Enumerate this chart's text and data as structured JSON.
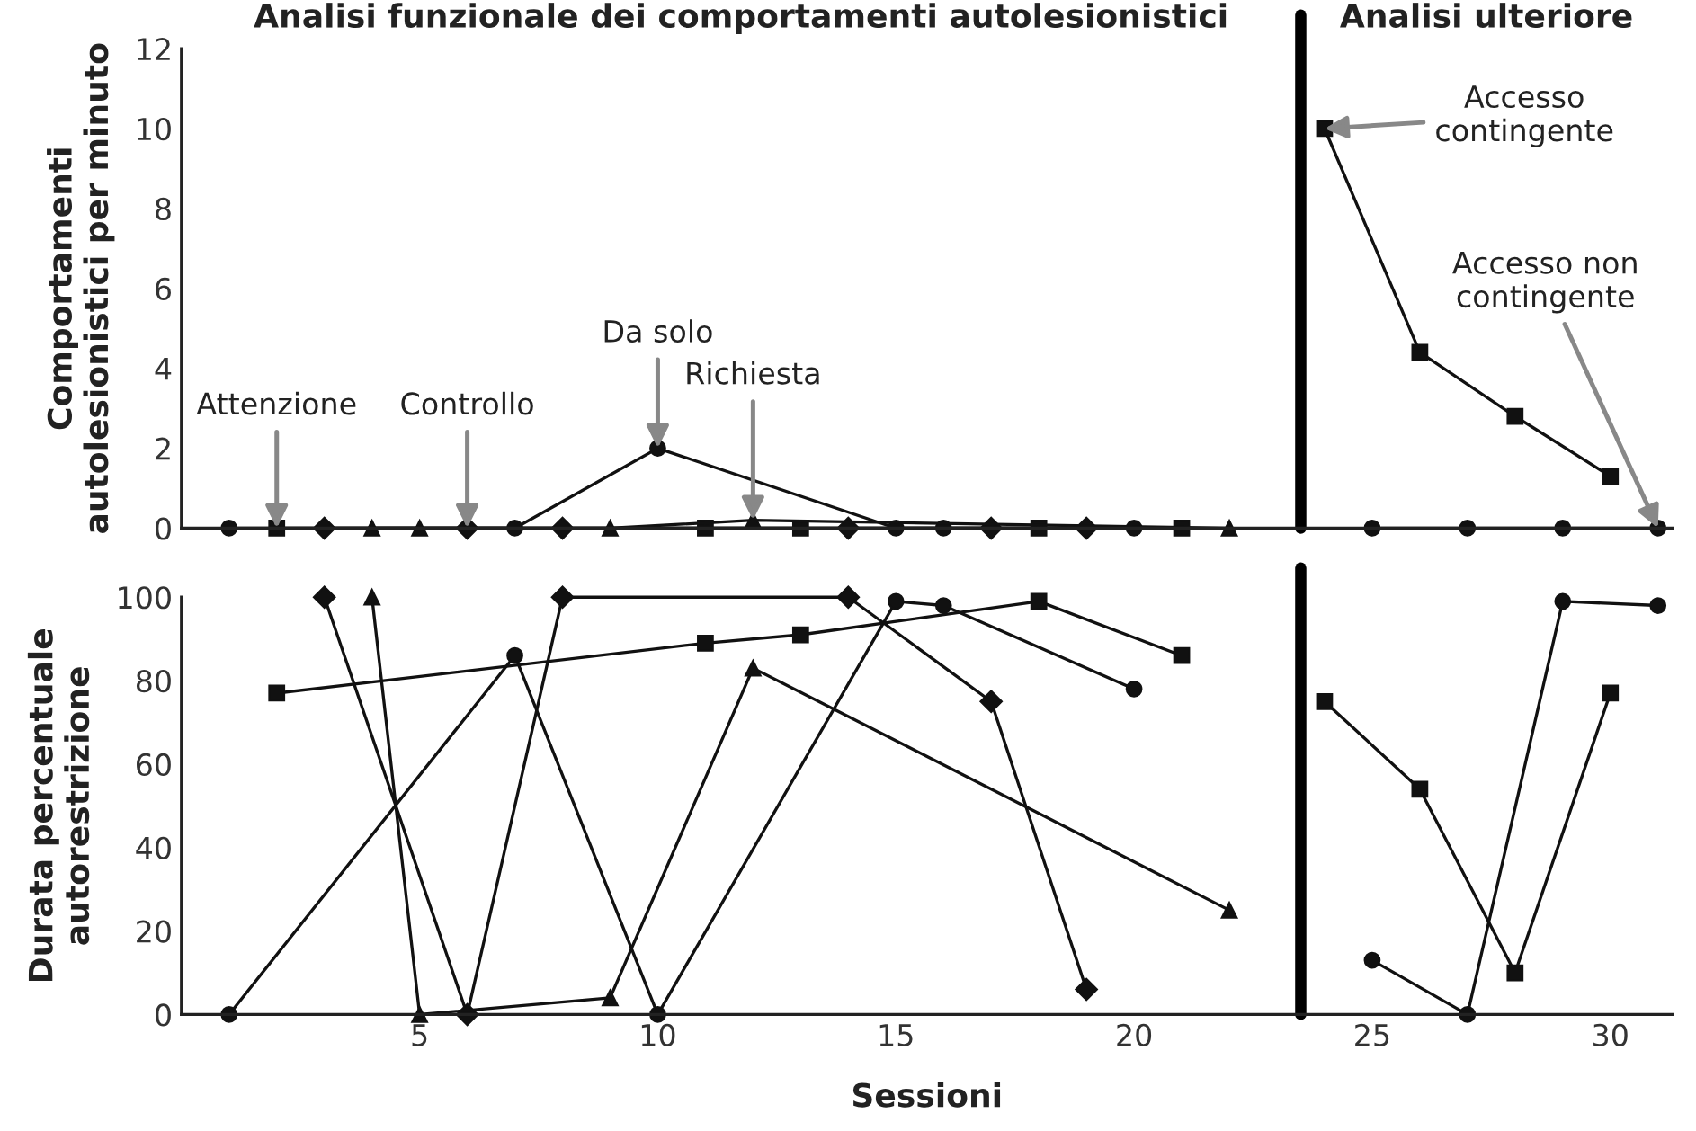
{
  "chart_data": [
    {
      "type": "line",
      "title": "Analisi funzionale dei comportamenti autolesionistici",
      "ylabel": "Comportamenti\nautolesionistici per minuto",
      "xlim": [
        0,
        31.3
      ],
      "ylim": [
        0,
        12
      ],
      "yticks": [
        0,
        2,
        4,
        6,
        8,
        10,
        12
      ],
      "tick_labels": "y",
      "grid": false,
      "legend": false,
      "line_style": "solid",
      "series": [
        {
          "color": "#111111",
          "marker": "circle",
          "x": [
            1,
            7,
            10,
            15,
            16,
            20
          ],
          "values": [
            0,
            0,
            2,
            0,
            0,
            0
          ]
        },
        {
          "color": "#111111",
          "marker": "square",
          "x": [
            2,
            11,
            13,
            18,
            21
          ],
          "values": [
            0,
            0,
            0,
            0,
            0
          ]
        },
        {
          "color": "#111111",
          "marker": "diamond",
          "x": [
            3,
            6,
            8,
            14,
            17,
            19
          ],
          "values": [
            0,
            0,
            0,
            0,
            0,
            0
          ]
        },
        {
          "color": "#111111",
          "marker": "triangle",
          "x": [
            4,
            5,
            9,
            12,
            22
          ],
          "values": [
            0,
            0,
            0,
            0.2,
            0
          ]
        },
        {
          "color": "#111111",
          "marker": "square",
          "x": [
            24,
            26,
            28,
            30
          ],
          "values": [
            10,
            4.4,
            2.8,
            1.3
          ]
        },
        {
          "color": "#111111",
          "marker": "circle",
          "x": [
            25,
            27,
            29,
            31
          ],
          "values": [
            0,
            0,
            0,
            0
          ]
        }
      ],
      "ref_lines": [
        {
          "axis": "x",
          "value": 23.5,
          "color": "#000000"
        }
      ],
      "annotations": [
        "Analisi ulteriore",
        {
          "text": "Attenzione",
          "x": 2,
          "y": 0
        },
        {
          "text": "Controllo",
          "x": 6,
          "y": 0
        },
        {
          "text": "Da solo",
          "x": 10,
          "y": 2
        },
        {
          "text": "Richiesta",
          "x": 12,
          "y": 0.2
        },
        {
          "text": "Accesso\ncontingente",
          "x": 24,
          "y": 10
        },
        {
          "text": "Accesso non\ncontingente",
          "x": 31,
          "y": 0
        }
      ]
    },
    {
      "type": "line",
      "xlabel": "Sessioni",
      "ylabel": "Durata percentuale\nautorestrizione",
      "xlim": [
        0,
        31.3
      ],
      "xticks": [
        5,
        10,
        15,
        20,
        25,
        30
      ],
      "ylim": [
        0,
        100
      ],
      "yticks": [
        0,
        20,
        40,
        60,
        80,
        100
      ],
      "grid": false,
      "legend": false,
      "line_style": "solid",
      "series": [
        {
          "color": "#111111",
          "marker": "circle",
          "x": [
            1,
            7,
            10,
            15,
            16,
            20
          ],
          "values": [
            0,
            86,
            0,
            99,
            98,
            78
          ]
        },
        {
          "color": "#111111",
          "marker": "square",
          "x": [
            2,
            11,
            13,
            18,
            21
          ],
          "values": [
            77,
            89,
            91,
            99,
            86
          ]
        },
        {
          "color": "#111111",
          "marker": "diamond",
          "x": [
            3,
            6,
            8,
            14,
            17,
            19
          ],
          "values": [
            100,
            0,
            100,
            100,
            75,
            6
          ]
        },
        {
          "color": "#111111",
          "marker": "triangle",
          "x": [
            4,
            5,
            9,
            12,
            22
          ],
          "values": [
            100,
            0,
            4,
            83,
            25
          ]
        },
        {
          "color": "#111111",
          "marker": "square",
          "x": [
            24,
            26,
            28,
            30
          ],
          "values": [
            75,
            54,
            10,
            77
          ]
        },
        {
          "color": "#111111",
          "marker": "circle",
          "x": [
            25,
            27,
            29,
            31
          ],
          "values": [
            13,
            0,
            99,
            98
          ]
        }
      ],
      "ref_lines": [
        {
          "axis": "x",
          "value": 23.5,
          "color": "#000000"
        }
      ]
    }
  ]
}
